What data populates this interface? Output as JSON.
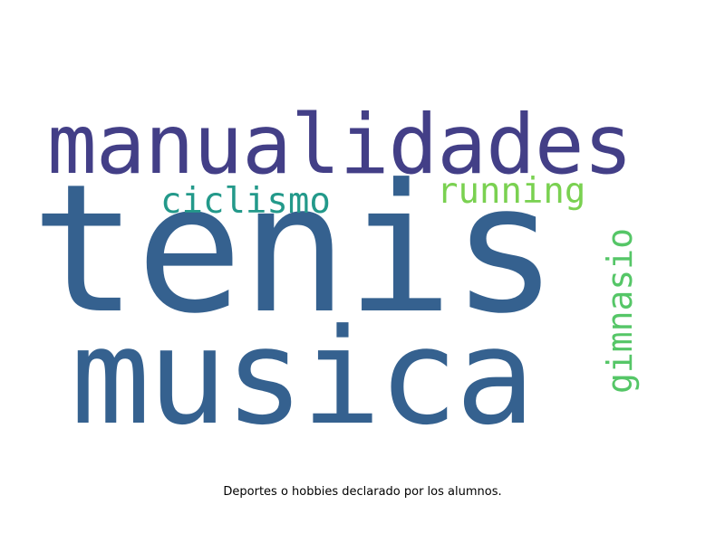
{
  "wordcloud": {
    "words": [
      {
        "key": "tenis",
        "text": "tenis",
        "color": "#35618f"
      },
      {
        "key": "musica",
        "text": "musica",
        "color": "#35618f"
      },
      {
        "key": "manualidades",
        "text": "manualidades",
        "color": "#433f87"
      },
      {
        "key": "ciclismo",
        "text": "ciclismo",
        "color": "#23998a"
      },
      {
        "key": "running",
        "text": "running",
        "color": "#7ad151"
      },
      {
        "key": "gimnasio",
        "text": "gimnasio",
        "color": "#55c667"
      }
    ]
  },
  "caption": "Deportes o hobbies declarado por los alumnos."
}
